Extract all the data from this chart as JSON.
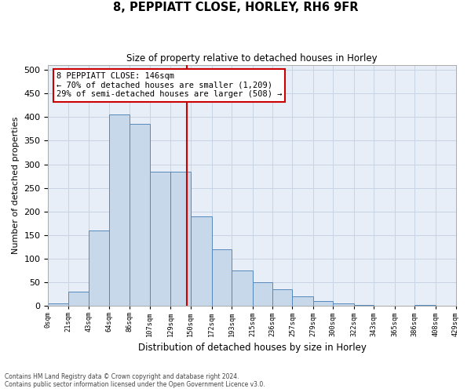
{
  "title": "8, PEPPIATT CLOSE, HORLEY, RH6 9FR",
  "subtitle": "Size of property relative to detached houses in Horley",
  "xlabel": "Distribution of detached houses by size in Horley",
  "ylabel": "Number of detached properties",
  "footnote1": "Contains HM Land Registry data © Crown copyright and database right 2024.",
  "footnote2": "Contains public sector information licensed under the Open Government Licence v3.0.",
  "annotation_line1": "8 PEPPIATT CLOSE: 146sqm",
  "annotation_line2": "← 70% of detached houses are smaller (1,209)",
  "annotation_line3": "29% of semi-detached houses are larger (508) →",
  "bar_edges": [
    0,
    21,
    43,
    64,
    86,
    107,
    129,
    150,
    172,
    193,
    215,
    236,
    257,
    279,
    300,
    322,
    343,
    365,
    386,
    408,
    429
  ],
  "bar_heights": [
    5,
    30,
    160,
    405,
    385,
    285,
    285,
    190,
    120,
    75,
    50,
    35,
    20,
    10,
    5,
    2,
    1,
    1,
    2,
    1
  ],
  "bar_color": "#c8d8eb",
  "bar_edge_color": "#5588bb",
  "vline_color": "#cc0000",
  "vline_x": 146,
  "ylim": [
    0,
    510
  ],
  "yticks": [
    0,
    50,
    100,
    150,
    200,
    250,
    300,
    350,
    400,
    450,
    500
  ],
  "annotation_box_edge": "#cc0000",
  "grid_color": "#c8d4e4",
  "plot_bg_color": "#e8eef8"
}
